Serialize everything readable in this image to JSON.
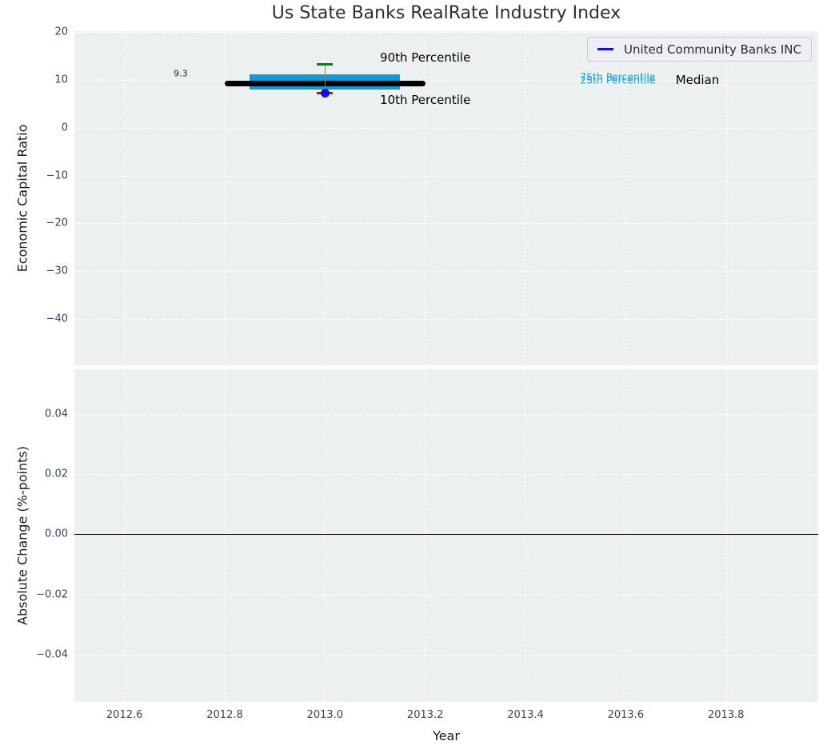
{
  "figure": {
    "title": "Us State Banks RealRate Industry Index",
    "legend": {
      "label": "United Community Banks INC",
      "line_color": "#0f0fee"
    }
  },
  "colors": {
    "plot_bg": "#ecf0f1",
    "grid": "#ffffff",
    "tick_label": "#36465c",
    "axis_label": "#1a1a1a",
    "title": "#2e2e2e",
    "box_fill": "#0d9bd3",
    "median_line": "#000000",
    "whisker": "#808080",
    "p90_cap": "#008000",
    "p10_cap": "#e8000b",
    "company_marker": "#0f0fee",
    "zero_line": "#000000",
    "percentile_label": "#1fa0d4"
  },
  "chart_data": [
    {
      "type": "boxplot",
      "title": "Us State Banks RealRate Industry Index",
      "ylabel": "Economic Capital Ratio",
      "xlim": [
        2012.5,
        2013.984
      ],
      "ylim": [
        -49.7,
        20.2
      ],
      "grid": true,
      "legend_position": "upper right",
      "show_xtick_labels": false,
      "xticks": [
        {
          "v": 2012.6,
          "label": "2012.6"
        },
        {
          "v": 2012.8,
          "label": "2012.8"
        },
        {
          "v": 2013.0,
          "label": "2013.0"
        },
        {
          "v": 2013.2,
          "label": "2013.2"
        },
        {
          "v": 2013.4,
          "label": "2013.4"
        },
        {
          "v": 2013.6,
          "label": "2013.6"
        },
        {
          "v": 2013.8,
          "label": "2013.8"
        }
      ],
      "yticks": [
        {
          "v": 20,
          "label": "20"
        },
        {
          "v": 10,
          "label": "10"
        },
        {
          "v": 0,
          "label": "0"
        },
        {
          "v": -10,
          "label": "−10"
        },
        {
          "v": -20,
          "label": "−20"
        },
        {
          "v": -30,
          "label": "−30"
        },
        {
          "v": -40,
          "label": "−40"
        }
      ],
      "box": {
        "x": 2013.0,
        "p10": 7.2,
        "p25": 8.0,
        "median": 9.3,
        "p75": 11.2,
        "p90": 13.2,
        "box_half_width": 0.15,
        "median_half_width": 0.2,
        "cap_half_width": 0.016
      },
      "company_point": {
        "name": "United Community Banks INC",
        "x": 2013.0,
        "y": 7.2
      },
      "annotations": [
        {
          "text": "9.3",
          "x": 2012.712,
          "y": 11.3,
          "color": "#262626",
          "size": 11
        },
        {
          "text": "90th Percentile",
          "x": 2013.2,
          "y": 14.7,
          "color": "#000000",
          "size": 15
        },
        {
          "text": "10th Percentile",
          "x": 2013.2,
          "y": 5.8,
          "color": "#000000",
          "size": 15
        },
        {
          "text": "75th Percentile",
          "x": 2013.584,
          "y": 10.6,
          "color": "#1fa0d4",
          "size": 12.5
        },
        {
          "text": "25th Percentile",
          "x": 2013.584,
          "y": 10.0,
          "color": "#1fa0d4",
          "size": 12.5
        },
        {
          "text": "Median",
          "x": 2013.743,
          "y": 10.0,
          "color": "#000000",
          "size": 15
        }
      ]
    },
    {
      "type": "line",
      "ylabel": "Absolute Change (%-points)",
      "xlabel": "Year",
      "xlim": [
        2012.5,
        2013.984
      ],
      "ylim": [
        -0.0556,
        0.0548
      ],
      "grid": true,
      "show_xtick_labels": true,
      "xticks": [
        {
          "v": 2012.6,
          "label": "2012.6"
        },
        {
          "v": 2012.8,
          "label": "2012.8"
        },
        {
          "v": 2013.0,
          "label": "2013.0"
        },
        {
          "v": 2013.2,
          "label": "2013.2"
        },
        {
          "v": 2013.4,
          "label": "2013.4"
        },
        {
          "v": 2013.6,
          "label": "2013.6"
        },
        {
          "v": 2013.8,
          "label": "2013.8"
        }
      ],
      "yticks": [
        {
          "v": 0.04,
          "label": "0.04"
        },
        {
          "v": 0.02,
          "label": "0.02"
        },
        {
          "v": 0.0,
          "label": "0.00"
        },
        {
          "v": -0.02,
          "label": "−0.02"
        },
        {
          "v": -0.04,
          "label": "−0.04"
        }
      ],
      "zero_line": 0.0,
      "series": []
    }
  ]
}
